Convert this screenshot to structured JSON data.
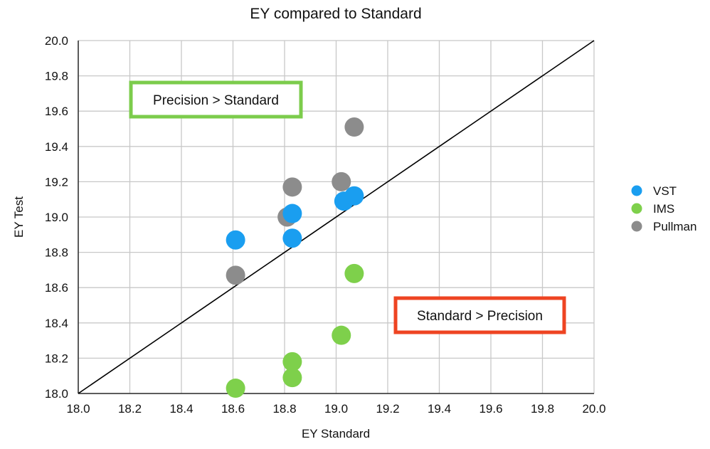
{
  "chart_data": {
    "type": "scatter",
    "title": "EY compared to Standard",
    "xlabel": "EY Standard",
    "ylabel": "EY Test",
    "xlim": [
      18.0,
      20.0
    ],
    "ylim": [
      18.0,
      20.0
    ],
    "x_ticks": [
      "18.0",
      "18.2",
      "18.4",
      "18.6",
      "18.8",
      "19.0",
      "19.2",
      "19.4",
      "19.6",
      "19.8",
      "20.0"
    ],
    "y_ticks": [
      "18.0",
      "18.2",
      "18.4",
      "18.6",
      "18.8",
      "19.0",
      "19.2",
      "19.4",
      "19.6",
      "19.8",
      "20.0"
    ],
    "grid": true,
    "legend_position": "right",
    "reference_line": {
      "from": [
        18.0,
        18.0
      ],
      "to": [
        20.0,
        20.0
      ],
      "color": "#000000"
    },
    "series": [
      {
        "name": "Pullman",
        "color": "#8c8c8c",
        "points": [
          {
            "x": 18.61,
            "y": 18.67
          },
          {
            "x": 18.81,
            "y": 19.0
          },
          {
            "x": 18.83,
            "y": 19.17
          },
          {
            "x": 19.02,
            "y": 19.2
          },
          {
            "x": 19.07,
            "y": 19.51
          }
        ]
      },
      {
        "name": "VST",
        "color": "#1a9ef0",
        "points": [
          {
            "x": 18.61,
            "y": 18.87
          },
          {
            "x": 18.83,
            "y": 18.88
          },
          {
            "x": 18.83,
            "y": 19.02
          },
          {
            "x": 19.03,
            "y": 19.09
          },
          {
            "x": 19.07,
            "y": 19.12
          }
        ]
      },
      {
        "name": "IMS",
        "color": "#7ed04b",
        "points": [
          {
            "x": 18.61,
            "y": 18.03
          },
          {
            "x": 18.83,
            "y": 18.09
          },
          {
            "x": 18.83,
            "y": 18.18
          },
          {
            "x": 19.02,
            "y": 18.33
          },
          {
            "x": 19.07,
            "y": 18.68
          }
        ]
      }
    ],
    "legend_order": [
      "VST",
      "IMS",
      "Pullman"
    ],
    "annotations": [
      {
        "text": "Precision > Standard",
        "border_color": "#7ccc4c"
      },
      {
        "text": "Standard > Precision",
        "border_color": "#ee4422"
      }
    ]
  }
}
